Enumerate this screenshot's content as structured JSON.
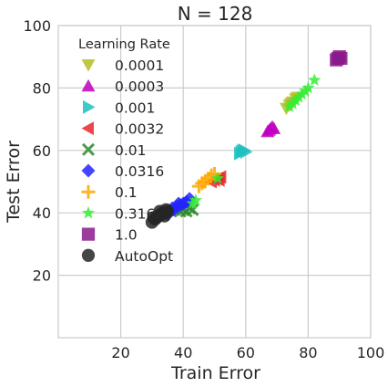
{
  "chart_data": {
    "type": "scatter",
    "title": "N = 128",
    "xlabel": "Train Error",
    "ylabel": "Test Error",
    "xlim": [
      0,
      100
    ],
    "ylim": [
      0,
      100
    ],
    "xticks": [
      20,
      40,
      60,
      80,
      100
    ],
    "yticks": [
      20,
      40,
      60,
      80,
      100
    ],
    "grid": true,
    "legend": {
      "title": "Learning Rate",
      "placement": "top-left"
    },
    "series": [
      {
        "name": "0.0001",
        "marker": "triangle-down",
        "color": "#b5bd22",
        "points": [
          [
            73,
            73.5
          ],
          [
            74,
            74.5
          ],
          [
            74.5,
            75
          ],
          [
            75,
            75.5
          ],
          [
            76,
            76.5
          ],
          [
            76.5,
            77
          ]
        ]
      },
      {
        "name": "0.0003",
        "marker": "triangle-up",
        "color": "#c000c0",
        "points": [
          [
            67,
            66
          ],
          [
            67.5,
            66.5
          ],
          [
            68,
            67
          ],
          [
            68.5,
            67.5
          ],
          [
            69,
            67
          ]
        ]
      },
      {
        "name": "0.001",
        "marker": "triangle-right",
        "color": "#1fbfbf",
        "points": [
          [
            58,
            59
          ],
          [
            58.5,
            59.5
          ],
          [
            59,
            60
          ],
          [
            59.5,
            60
          ],
          [
            60,
            59.5
          ]
        ]
      },
      {
        "name": "0.0032",
        "marker": "triangle-left",
        "color": "#e8282c",
        "points": [
          [
            49,
            50
          ],
          [
            50,
            50.5
          ],
          [
            51,
            51
          ],
          [
            51.5,
            50.5
          ],
          [
            52,
            51.5
          ]
        ]
      },
      {
        "name": "0.01",
        "marker": "x",
        "color": "#2e8b2e",
        "points": [
          [
            39,
            40.5
          ],
          [
            40,
            41
          ],
          [
            41,
            40.5
          ],
          [
            42,
            41.5
          ],
          [
            43,
            41
          ]
        ]
      },
      {
        "name": "0.0316",
        "marker": "diamond",
        "color": "#2424ff",
        "points": [
          [
            35,
            39.5
          ],
          [
            36,
            40.5
          ],
          [
            37,
            41
          ],
          [
            38,
            42
          ],
          [
            39,
            42.5
          ],
          [
            40,
            43
          ],
          [
            41,
            43.5
          ],
          [
            42,
            44.5
          ],
          [
            36.5,
            41.5
          ],
          [
            38.5,
            43
          ]
        ]
      },
      {
        "name": "0.1",
        "marker": "plus",
        "color": "#ffa600",
        "points": [
          [
            45,
            48.5
          ],
          [
            47,
            50
          ],
          [
            48,
            51
          ],
          [
            49,
            52
          ],
          [
            50,
            52.5
          ],
          [
            46,
            49.5
          ]
        ]
      },
      {
        "name": "0.3162",
        "marker": "star",
        "color": "#33ee33",
        "points": [
          [
            74,
            74
          ],
          [
            75,
            75
          ],
          [
            76,
            76
          ],
          [
            77,
            77
          ],
          [
            78,
            78
          ],
          [
            79,
            79
          ],
          [
            80,
            80
          ],
          [
            82,
            82.5
          ],
          [
            43,
            43
          ],
          [
            44,
            44
          ],
          [
            51,
            51
          ]
        ]
      },
      {
        "name": "1.0",
        "marker": "square",
        "color": "#8b1a8b",
        "points": [
          [
            89,
            89
          ],
          [
            89.5,
            89.5
          ],
          [
            90,
            90
          ],
          [
            90.5,
            89.5
          ]
        ]
      },
      {
        "name": "AutoOpt",
        "marker": "circle",
        "color": "#262626",
        "points": [
          [
            30,
            37
          ],
          [
            31,
            38
          ],
          [
            31.5,
            38.5
          ],
          [
            32,
            39
          ],
          [
            33,
            39.5
          ],
          [
            33.5,
            40
          ],
          [
            34,
            39
          ],
          [
            30.5,
            38.5
          ],
          [
            32.5,
            40.5
          ],
          [
            35,
            40.5
          ],
          [
            34.5,
            41
          ]
        ]
      }
    ]
  }
}
